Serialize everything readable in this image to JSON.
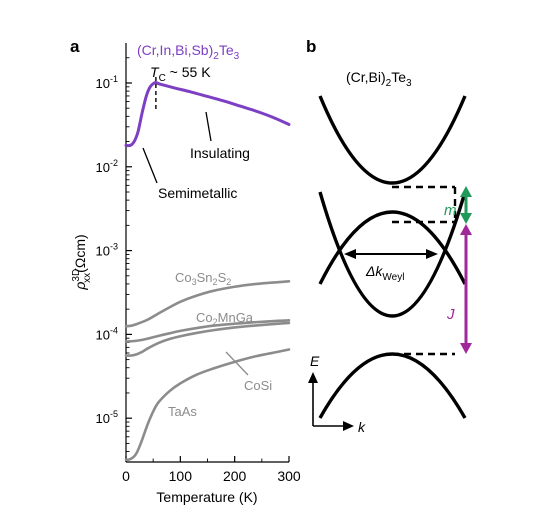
{
  "panel_a": {
    "letter": "a",
    "ylabel_main": "ρ",
    "ylabel_sup": "3D",
    "ylabel_sub": "xx",
    "ylabel_unit": "(Ωcm)",
    "colors": {
      "violet": "#7d3fc4",
      "gray": "#8c8c8c",
      "axis": "#000000"
    },
    "annotations": {
      "series_label": "(Cr,In,Bi,Sb)",
      "series_label_sub": "2",
      "series_label_tail": "Te",
      "series_label_sub2": "3",
      "tc_T": "T",
      "tc_sub": "C",
      "tc_rest": " ~ 55 K",
      "insulating": "Insulating",
      "semimetallic": "Semimetallic"
    }
  },
  "chart_data": {
    "type": "line",
    "xlabel": "Temperature (K)",
    "ylabel": "ρxx3D (Ωcm)",
    "xlim": [
      0,
      300
    ],
    "ylim": [
      3e-06,
      0.3
    ],
    "yscale": "log",
    "x_ticks": [
      "0",
      "100",
      "200",
      "300"
    ],
    "y_ticks": [
      {
        "base": "10",
        "exp": "-5"
      },
      {
        "base": "10",
        "exp": "-4"
      },
      {
        "base": "10",
        "exp": "-3"
      },
      {
        "base": "10",
        "exp": "-2"
      },
      {
        "base": "10",
        "exp": "-1"
      }
    ],
    "series": [
      {
        "name": "(Cr,In,Bi,Sb)2Te3",
        "color": "#7d3fc4",
        "x": [
          0,
          8,
          15,
          22,
          30,
          38,
          45,
          52,
          56,
          60,
          70,
          90,
          120,
          150,
          180,
          210,
          240,
          270,
          300
        ],
        "y": [
          0.018,
          0.018,
          0.02,
          0.026,
          0.045,
          0.072,
          0.091,
          0.1,
          0.101,
          0.098,
          0.094,
          0.087,
          0.078,
          0.069,
          0.061,
          0.053,
          0.046,
          0.039,
          0.032
        ]
      },
      {
        "name": "Co3Sn2S2",
        "color": "#8c8c8c",
        "x": [
          0,
          10,
          20,
          40,
          60,
          80,
          100,
          130,
          160,
          200,
          240,
          280,
          300
        ],
        "y": [
          0.000125,
          0.000127,
          0.000133,
          0.00015,
          0.000178,
          0.00021,
          0.000245,
          0.00029,
          0.00033,
          0.00037,
          0.0004,
          0.00042,
          0.00043
        ]
      },
      {
        "name": "Co2MnGa",
        "color": "#8c8c8c",
        "x": [
          0,
          20,
          40,
          60,
          80,
          100,
          130,
          160,
          200,
          240,
          280,
          300
        ],
        "y": [
          8.2e-05,
          8.4e-05,
          8.9e-05,
          9.6e-05,
          0.000103,
          0.00011,
          0.000119,
          0.000127,
          0.000134,
          0.00014,
          0.000145,
          0.000147
        ]
      },
      {
        "name": "CoSi",
        "color": "#8c8c8c",
        "x": [
          0,
          10,
          20,
          30,
          40,
          60,
          80,
          100,
          130,
          160,
          200,
          240,
          280,
          300
        ],
        "y": [
          5.6e-05,
          5.6e-05,
          5.8e-05,
          6.2e-05,
          6.8e-05,
          7.9e-05,
          8.8e-05,
          9.5e-05,
          0.000104,
          0.000112,
          0.000121,
          0.000128,
          0.000134,
          0.000137
        ]
      },
      {
        "name": "TaAs",
        "color": "#8c8c8c",
        "x": [
          0,
          5,
          10,
          15,
          20,
          25,
          30,
          40,
          50,
          60,
          80,
          100,
          130,
          160,
          200,
          240,
          280,
          300
        ],
        "y": [
          3.2e-06,
          3.2e-06,
          3.3e-06,
          3.5e-06,
          3.9e-06,
          4.6e-06,
          5.6e-06,
          8.5e-06,
          1.2e-05,
          1.55e-05,
          2.1e-05,
          2.6e-05,
          3.3e-05,
          3.9e-05,
          4.7e-05,
          5.5e-05,
          6.2e-05,
          6.6e-05
        ]
      }
    ],
    "series_labels": [
      "Co3Sn2S2",
      "Co2MnGa",
      "CoSi",
      "TaAs"
    ],
    "tc_marker": {
      "x": 55
    }
  },
  "panel_b": {
    "letter": "b",
    "title_a": "(Cr,Bi)",
    "title_sub": "2",
    "title_b": "Te",
    "title_sub2": "3",
    "m_label": "m",
    "j_label": "J",
    "dk_delta": "Δk",
    "dk_sub": "Weyl",
    "e_label": "E",
    "k_label": "k",
    "colors": {
      "green": "#1f9a5a",
      "purple": "#a0289b",
      "band": "#000000"
    }
  }
}
